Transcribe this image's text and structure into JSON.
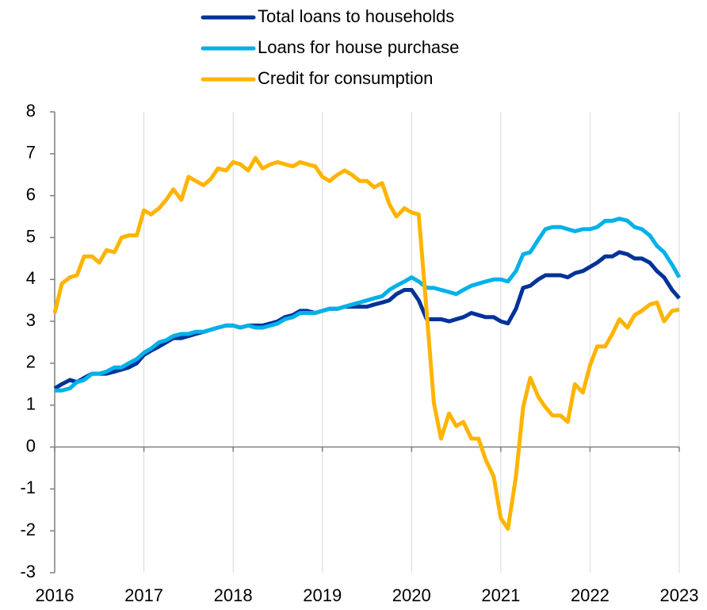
{
  "chart_data": {
    "type": "line",
    "x": [
      2016,
      2016.08,
      2016.17,
      2016.25,
      2016.33,
      2016.42,
      2016.5,
      2016.58,
      2016.67,
      2016.75,
      2016.83,
      2016.92,
      2017,
      2017.08,
      2017.17,
      2017.25,
      2017.33,
      2017.42,
      2017.5,
      2017.58,
      2017.67,
      2017.75,
      2017.83,
      2017.92,
      2018,
      2018.08,
      2018.17,
      2018.25,
      2018.33,
      2018.42,
      2018.5,
      2018.58,
      2018.67,
      2018.75,
      2018.83,
      2018.92,
      2019,
      2019.08,
      2019.17,
      2019.25,
      2019.33,
      2019.42,
      2019.5,
      2019.58,
      2019.67,
      2019.75,
      2019.83,
      2019.92,
      2020,
      2020.08,
      2020.17,
      2020.25,
      2020.33,
      2020.42,
      2020.5,
      2020.58,
      2020.67,
      2020.75,
      2020.83,
      2020.92,
      2021,
      2021.08,
      2021.17,
      2021.25,
      2021.33,
      2021.42,
      2021.5,
      2021.58,
      2021.67,
      2021.75,
      2021.83,
      2021.92,
      2022,
      2022.08,
      2022.17,
      2022.25,
      2022.33,
      2022.42,
      2022.5,
      2022.58,
      2022.67,
      2022.75,
      2022.83,
      2022.92,
      2023
    ],
    "series": [
      {
        "name": "Total loans to households",
        "color": "#003299",
        "values": [
          1.4,
          1.5,
          1.6,
          1.55,
          1.65,
          1.75,
          1.75,
          1.75,
          1.8,
          1.85,
          1.9,
          2.0,
          2.2,
          2.3,
          2.4,
          2.5,
          2.6,
          2.6,
          2.65,
          2.7,
          2.75,
          2.8,
          2.85,
          2.9,
          2.9,
          2.85,
          2.9,
          2.9,
          2.9,
          2.95,
          3.0,
          3.1,
          3.15,
          3.25,
          3.25,
          3.2,
          3.25,
          3.3,
          3.3,
          3.35,
          3.35,
          3.35,
          3.35,
          3.4,
          3.45,
          3.5,
          3.65,
          3.75,
          3.75,
          3.5,
          3.05,
          3.05,
          3.05,
          3.0,
          3.05,
          3.1,
          3.2,
          3.15,
          3.1,
          3.1,
          3.0,
          2.95,
          3.3,
          3.8,
          3.85,
          4.0,
          4.1,
          4.1,
          4.1,
          4.05,
          4.15,
          4.2,
          4.3,
          4.4,
          4.55,
          4.55,
          4.65,
          4.6,
          4.5,
          4.5,
          4.4,
          4.2,
          4.05,
          3.75,
          3.55
        ]
      },
      {
        "name": "Loans for house purchase",
        "color": "#00b1ea",
        "values": [
          1.35,
          1.35,
          1.4,
          1.55,
          1.6,
          1.75,
          1.75,
          1.8,
          1.9,
          1.9,
          2.0,
          2.1,
          2.25,
          2.35,
          2.5,
          2.55,
          2.65,
          2.7,
          2.7,
          2.75,
          2.75,
          2.8,
          2.85,
          2.9,
          2.9,
          2.85,
          2.9,
          2.85,
          2.85,
          2.9,
          2.95,
          3.05,
          3.1,
          3.2,
          3.2,
          3.2,
          3.25,
          3.3,
          3.3,
          3.35,
          3.4,
          3.45,
          3.5,
          3.55,
          3.6,
          3.75,
          3.85,
          3.95,
          4.05,
          3.95,
          3.8,
          3.8,
          3.75,
          3.7,
          3.65,
          3.75,
          3.85,
          3.9,
          3.95,
          4.0,
          4.0,
          3.95,
          4.2,
          4.6,
          4.65,
          4.95,
          5.2,
          5.25,
          5.25,
          5.2,
          5.15,
          5.2,
          5.2,
          5.25,
          5.4,
          5.4,
          5.45,
          5.4,
          5.25,
          5.2,
          5.05,
          4.8,
          4.65,
          4.35,
          4.05
        ]
      },
      {
        "name": "Credit for consumption",
        "color": "#ffb400",
        "values": [
          3.2,
          3.9,
          4.05,
          4.1,
          4.55,
          4.55,
          4.4,
          4.7,
          4.65,
          5.0,
          5.05,
          5.05,
          5.65,
          5.55,
          5.7,
          5.9,
          6.15,
          5.9,
          6.45,
          6.35,
          6.25,
          6.4,
          6.65,
          6.6,
          6.8,
          6.75,
          6.6,
          6.9,
          6.65,
          6.75,
          6.8,
          6.75,
          6.7,
          6.8,
          6.75,
          6.7,
          6.45,
          6.35,
          6.5,
          6.6,
          6.5,
          6.35,
          6.35,
          6.2,
          6.3,
          5.8,
          5.5,
          5.7,
          5.6,
          5.55,
          3.2,
          1.05,
          0.2,
          0.8,
          0.5,
          0.6,
          0.2,
          0.2,
          -0.3,
          -0.7,
          -1.7,
          -1.95,
          -0.7,
          0.95,
          1.65,
          1.2,
          0.95,
          0.75,
          0.75,
          0.6,
          1.5,
          1.3,
          1.95,
          2.4,
          2.4,
          2.7,
          3.05,
          2.85,
          3.15,
          3.25,
          3.4,
          3.45,
          3.0,
          3.25,
          3.28
        ]
      }
    ],
    "xlim": [
      2016,
      2023
    ],
    "xticks": [
      2016,
      2017,
      2018,
      2019,
      2020,
      2021,
      2022,
      2023
    ],
    "ylim": [
      -3,
      8
    ],
    "yticks": [
      -3,
      -2,
      -1,
      0,
      1,
      2,
      3,
      4,
      5,
      6,
      7,
      8
    ],
    "grid": true
  }
}
